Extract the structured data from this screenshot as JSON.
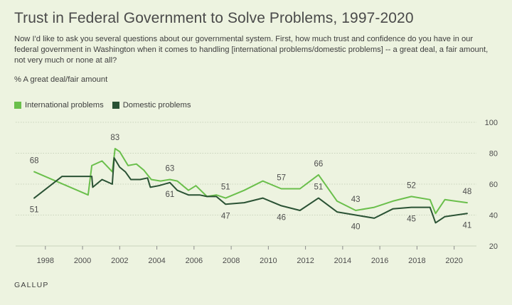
{
  "title": "Trust in Federal Government to Solve Problems, 1997-2020",
  "subtitle": "Now I'd like to ask you several questions about our governmental system. First, how much trust and confidence do you have in our federal government in Washington when it comes to handling [international problems/domestic problems] -- a great deal, a fair amount, not very much or none at all?",
  "measure": "% A great deal/fair amount",
  "source": "GALLUP",
  "colors": {
    "international": "#6abf4b",
    "domestic": "#2a5234",
    "grid": "#c9d3bc"
  },
  "chart_data": {
    "type": "line",
    "xlim": [
      1996.4,
      2021.2
    ],
    "ylim": [
      20,
      100
    ],
    "x_ticks": [
      1998,
      2000,
      2002,
      2004,
      2006,
      2008,
      2010,
      2012,
      2014,
      2016,
      2018,
      2020
    ],
    "y_ticks": [
      20,
      40,
      60,
      80,
      100
    ],
    "grid": "horizontal",
    "legend_position": "top-left",
    "series": [
      {
        "name": "International problems",
        "key": "international",
        "points": [
          [
            1997.4,
            68
          ],
          [
            2000.3,
            53
          ],
          [
            2000.5,
            72
          ],
          [
            2001.05,
            75
          ],
          [
            2001.6,
            68
          ],
          [
            2001.75,
            83
          ],
          [
            2002.0,
            81
          ],
          [
            2002.45,
            72
          ],
          [
            2002.9,
            73
          ],
          [
            2003.3,
            69
          ],
          [
            2003.7,
            63
          ],
          [
            2004.2,
            62
          ],
          [
            2004.7,
            63
          ],
          [
            2005.1,
            62
          ],
          [
            2005.7,
            56
          ],
          [
            2006.1,
            59
          ],
          [
            2006.7,
            52
          ],
          [
            2007.2,
            53
          ],
          [
            2007.7,
            51
          ],
          [
            2008.7,
            56
          ],
          [
            2009.7,
            62
          ],
          [
            2010.7,
            57
          ],
          [
            2011.7,
            57
          ],
          [
            2012.7,
            66
          ],
          [
            2013.7,
            49
          ],
          [
            2014.7,
            43
          ],
          [
            2015.7,
            45
          ],
          [
            2016.7,
            49
          ],
          [
            2017.7,
            52
          ],
          [
            2018.7,
            50
          ],
          [
            2019.0,
            41
          ],
          [
            2019.5,
            50
          ],
          [
            2020.7,
            48
          ]
        ]
      },
      {
        "name": "Domestic problems",
        "key": "domestic",
        "points": [
          [
            1997.4,
            51
          ],
          [
            1998.9,
            65
          ],
          [
            2000.5,
            65
          ],
          [
            2000.55,
            58
          ],
          [
            2001.05,
            63
          ],
          [
            2001.6,
            60
          ],
          [
            2001.7,
            77
          ],
          [
            2002.0,
            71
          ],
          [
            2002.3,
            68
          ],
          [
            2002.6,
            63
          ],
          [
            2003.1,
            63
          ],
          [
            2003.5,
            64
          ],
          [
            2003.65,
            58
          ],
          [
            2004.1,
            59
          ],
          [
            2004.7,
            61
          ],
          [
            2005.1,
            56
          ],
          [
            2005.7,
            53
          ],
          [
            2006.3,
            53
          ],
          [
            2006.7,
            52
          ],
          [
            2007.2,
            52
          ],
          [
            2007.7,
            47
          ],
          [
            2008.7,
            48
          ],
          [
            2009.7,
            51
          ],
          [
            2010.7,
            46
          ],
          [
            2011.7,
            43
          ],
          [
            2012.7,
            51
          ],
          [
            2013.7,
            42
          ],
          [
            2014.7,
            40
          ],
          [
            2015.7,
            38
          ],
          [
            2016.7,
            44
          ],
          [
            2017.7,
            45
          ],
          [
            2018.7,
            45
          ],
          [
            2019.0,
            35
          ],
          [
            2019.5,
            39
          ],
          [
            2020.7,
            41
          ]
        ]
      }
    ],
    "data_labels": [
      {
        "series": "international",
        "x": 1997.4,
        "y": 68,
        "text": "68",
        "position": "above"
      },
      {
        "series": "international",
        "x": 2001.75,
        "y": 83,
        "text": "83",
        "position": "above"
      },
      {
        "series": "international",
        "x": 2004.7,
        "y": 63,
        "text": "63",
        "position": "above"
      },
      {
        "series": "international",
        "x": 2007.7,
        "y": 51,
        "text": "51",
        "position": "above"
      },
      {
        "series": "international",
        "x": 2010.7,
        "y": 57,
        "text": "57",
        "position": "above"
      },
      {
        "series": "international",
        "x": 2012.7,
        "y": 66,
        "text": "66",
        "position": "above"
      },
      {
        "series": "international",
        "x": 2014.7,
        "y": 43,
        "text": "43",
        "position": "above"
      },
      {
        "series": "international",
        "x": 2017.7,
        "y": 52,
        "text": "52",
        "position": "above"
      },
      {
        "series": "international",
        "x": 2020.7,
        "y": 48,
        "text": "48",
        "position": "above"
      },
      {
        "series": "domestic",
        "x": 1997.4,
        "y": 51,
        "text": "51",
        "position": "below"
      },
      {
        "series": "domestic",
        "x": 2004.7,
        "y": 61,
        "text": "61",
        "position": "below"
      },
      {
        "series": "domestic",
        "x": 2007.7,
        "y": 47,
        "text": "47",
        "position": "below"
      },
      {
        "series": "domestic",
        "x": 2010.7,
        "y": 46,
        "text": "46",
        "position": "below"
      },
      {
        "series": "domestic",
        "x": 2012.7,
        "y": 51,
        "text": "51",
        "position": "above"
      },
      {
        "series": "domestic",
        "x": 2014.7,
        "y": 40,
        "text": "40",
        "position": "below"
      },
      {
        "series": "domestic",
        "x": 2017.7,
        "y": 45,
        "text": "45",
        "position": "below"
      },
      {
        "series": "domestic",
        "x": 2020.7,
        "y": 41,
        "text": "41",
        "position": "below"
      }
    ]
  }
}
